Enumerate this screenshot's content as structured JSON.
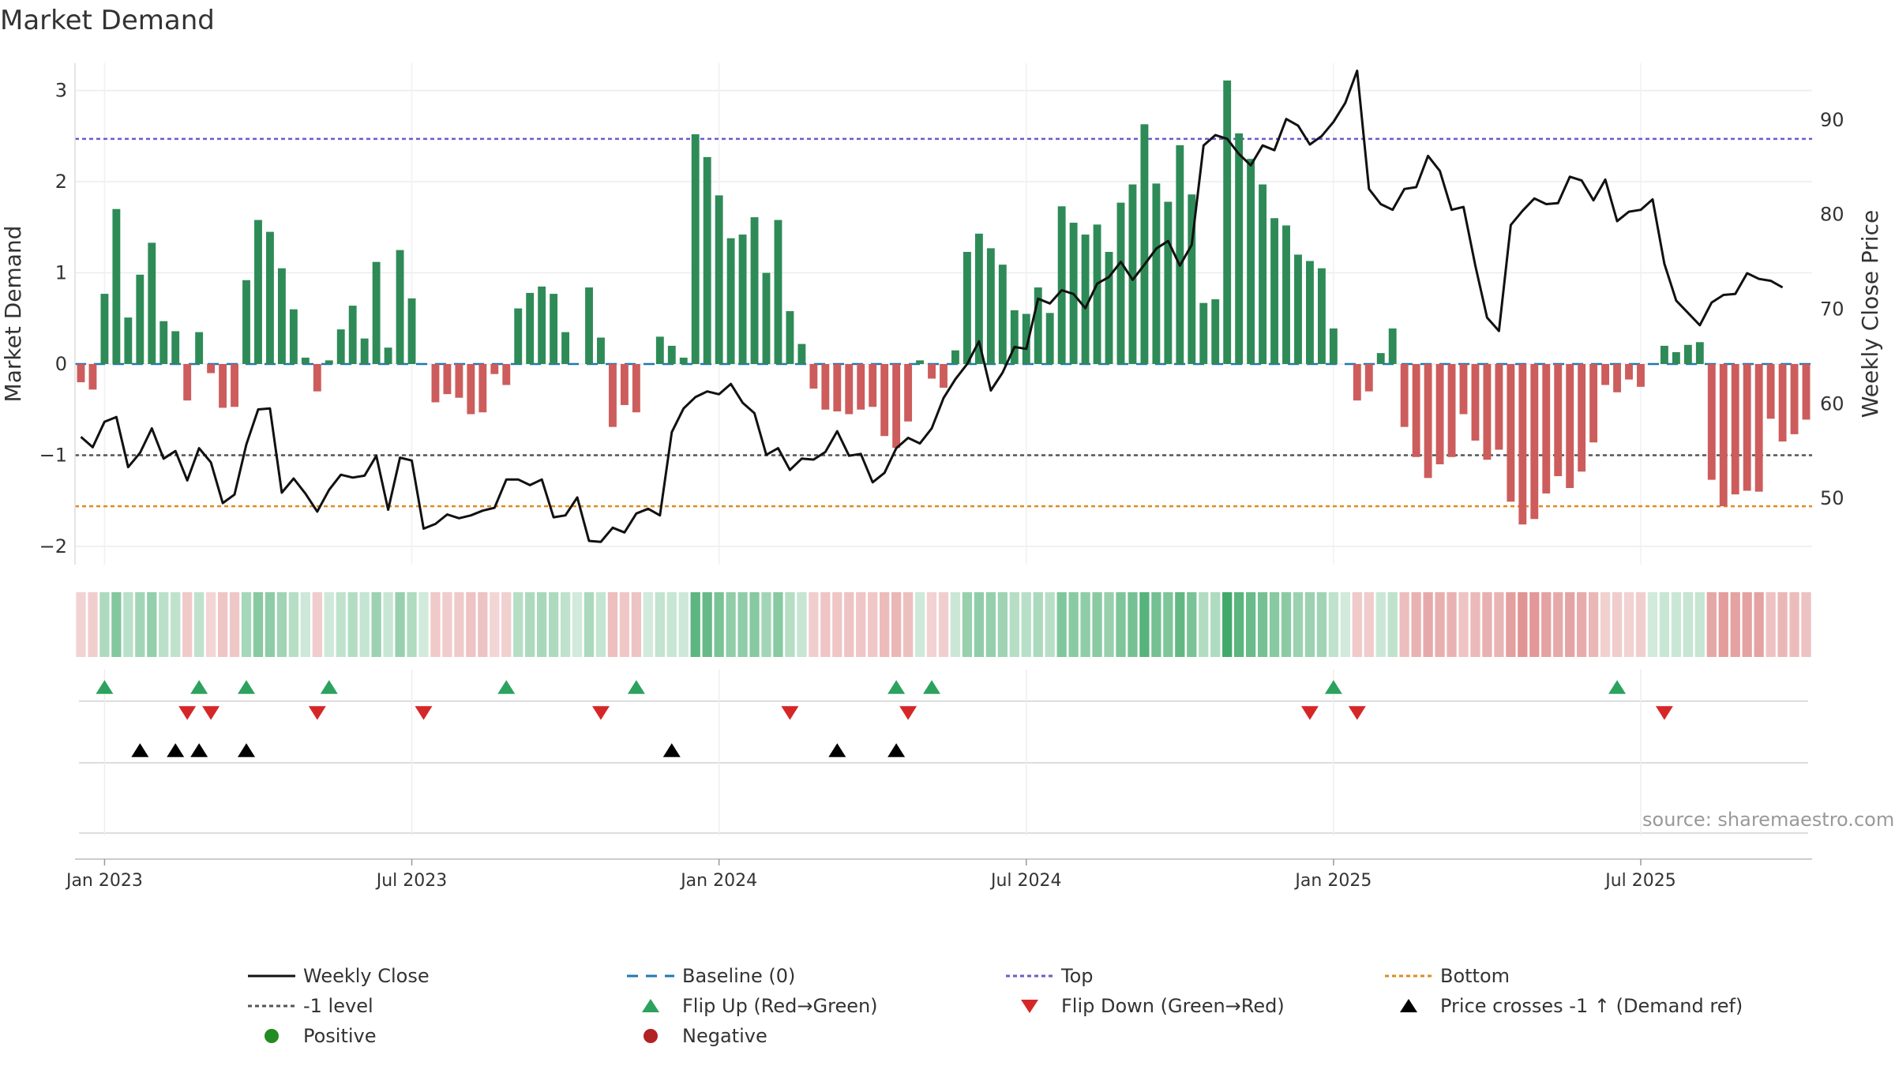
{
  "title": "Market Demand",
  "source": "source: sharemaestro.com",
  "colors": {
    "green": "#2e8b57",
    "red": "#cd5c5c",
    "price": "#111111",
    "baseline": "#1f77b4",
    "top": "#6a5acd",
    "bottom": "#e08a1e",
    "minus1": "#555555",
    "flip_up": "#2ca25f",
    "flip_down": "#d62728",
    "cross": "#000000"
  },
  "chart_data": {
    "type": "bar",
    "title": "Market Demand",
    "ylabel": "Market Demand",
    "y2label": "Weekly Close Price",
    "ylim": [
      -2.2,
      3.3
    ],
    "y2lim": [
      43,
      96
    ],
    "yticks": [
      -2,
      -1,
      0,
      1,
      2,
      3
    ],
    "y2ticks": [
      50,
      60,
      70,
      80,
      90
    ],
    "xtick_labels": [
      "Jan 2023",
      "Jul 2023",
      "Jan 2024",
      "Jul 2024",
      "Jan 2025",
      "Jul 2025"
    ],
    "xtick_weeks": [
      0,
      26,
      52,
      78,
      104,
      130
    ],
    "start_week_offset": -2,
    "levels": {
      "top": 2.47,
      "bottom": -1.56,
      "minus1": -1.0,
      "baseline": 0
    },
    "demand": [
      -0.2,
      -0.28,
      0.77,
      1.7,
      0.51,
      0.98,
      1.33,
      0.47,
      0.36,
      -0.4,
      0.35,
      -0.1,
      -0.48,
      -0.47,
      0.92,
      1.58,
      1.45,
      1.05,
      0.6,
      0.07,
      -0.3,
      0.04,
      0.38,
      0.64,
      0.28,
      1.12,
      0.18,
      1.25,
      0.72,
      0.0,
      -0.42,
      -0.33,
      -0.37,
      -0.55,
      -0.53,
      -0.11,
      -0.23,
      0.61,
      0.78,
      0.85,
      0.77,
      0.35,
      0.0,
      0.84,
      0.29,
      -0.69,
      -0.45,
      -0.53,
      0.0,
      0.3,
      0.2,
      0.07,
      2.52,
      2.27,
      1.85,
      1.38,
      1.42,
      1.61,
      1.0,
      1.58,
      0.58,
      0.22,
      -0.27,
      -0.5,
      -0.52,
      -0.55,
      -0.5,
      -0.47,
      -0.79,
      -0.92,
      -0.63,
      0.04,
      -0.16,
      -0.26,
      0.15,
      1.23,
      1.43,
      1.27,
      1.09,
      0.59,
      0.55,
      0.84,
      0.56,
      1.73,
      1.55,
      1.42,
      1.53,
      1.23,
      1.77,
      1.97,
      2.63,
      1.98,
      1.78,
      2.4,
      1.86,
      0.67,
      0.71,
      3.11,
      2.53,
      2.25,
      1.97,
      1.6,
      1.52,
      1.2,
      1.13,
      1.05,
      0.39,
      0.0,
      -0.4,
      -0.3,
      0.12,
      0.39,
      -0.69,
      -1.02,
      -1.25,
      -1.1,
      -1.02,
      -0.55,
      -0.84,
      -1.05,
      -0.94,
      -1.51,
      -1.76,
      -1.7,
      -1.42,
      -1.23,
      -1.36,
      -1.18,
      -0.86,
      -0.23,
      -0.31,
      -0.17,
      -0.25,
      0.0,
      0.2,
      0.13,
      0.21,
      0.24,
      -1.27,
      -1.56,
      -1.43,
      -1.39,
      -1.4,
      -0.6,
      -0.85,
      -0.77,
      -0.61
    ],
    "price": [
      56.5,
      55.4,
      58.1,
      58.6,
      53.3,
      54.8,
      57.4,
      54.2,
      55.0,
      51.9,
      55.3,
      53.8,
      49.5,
      50.4,
      55.7,
      59.4,
      59.5,
      50.6,
      52.1,
      50.5,
      48.6,
      50.9,
      52.5,
      52.2,
      52.4,
      54.5,
      48.8,
      54.3,
      54.0,
      46.8,
      47.3,
      48.3,
      47.9,
      48.2,
      48.7,
      49.0,
      52.0,
      52.0,
      51.4,
      52.0,
      48.0,
      48.2,
      50.1,
      45.5,
      45.4,
      46.9,
      46.4,
      48.4,
      48.9,
      48.2,
      57.0,
      59.5,
      60.7,
      61.3,
      61.0,
      62.1,
      60.1,
      59.0,
      54.6,
      55.3,
      53.0,
      54.2,
      54.1,
      54.9,
      57.1,
      54.5,
      54.7,
      51.7,
      52.7,
      55.3,
      56.4,
      55.8,
      57.4,
      60.6,
      62.6,
      64.2,
      66.6,
      61.4,
      63.3,
      66.0,
      65.8,
      71.1,
      70.6,
      72.0,
      71.6,
      70.1,
      72.7,
      73.4,
      75.0,
      73.1,
      74.7,
      76.4,
      77.2,
      74.6,
      76.8,
      87.3,
      88.4,
      88.0,
      86.4,
      85.2,
      87.3,
      86.8,
      90.1,
      89.4,
      87.4,
      88.3,
      89.8,
      91.8,
      95.2,
      82.7,
      81.1,
      80.5,
      82.7,
      82.9,
      86.2,
      84.6,
      80.5,
      80.8,
      74.6,
      69.1,
      67.7,
      78.9,
      80.4,
      81.7,
      81.1,
      81.2,
      84.0,
      83.6,
      81.5,
      83.7,
      79.3,
      80.3,
      80.5,
      81.6,
      74.8,
      70.9,
      69.6,
      68.3,
      70.7,
      71.5,
      71.6,
      73.8,
      73.2,
      73.0,
      72.3
    ],
    "flip_up_weeks": [
      0,
      8,
      12,
      19,
      34,
      45,
      67,
      70,
      104,
      128
    ],
    "flip_down_weeks": [
      7,
      9,
      18,
      27,
      42,
      58,
      68,
      102,
      106,
      132
    ],
    "cross_up_weeks": [
      3,
      6,
      8,
      12,
      48,
      62,
      67
    ]
  },
  "legend": [
    {
      "key": "weekly_close",
      "label": "Weekly Close",
      "icon": "solid-line"
    },
    {
      "key": "baseline",
      "label": "Baseline (0)",
      "icon": "dashed-line"
    },
    {
      "key": "top",
      "label": "Top",
      "icon": "dotted-line"
    },
    {
      "key": "bottom",
      "label": "Bottom",
      "icon": "dotted-line"
    },
    {
      "key": "minus1",
      "label": "-1 level",
      "icon": "dotted-line"
    },
    {
      "key": "flip_up",
      "label": "Flip Up (Red→Green)",
      "icon": "triangle-up"
    },
    {
      "key": "flip_down",
      "label": "Flip Down (Green→Red)",
      "icon": "triangle-down"
    },
    {
      "key": "cross",
      "label": "Price crosses -1 ↑ (Demand ref)",
      "icon": "triangle-up"
    },
    {
      "key": "positive",
      "label": "Positive",
      "icon": "circle"
    },
    {
      "key": "negative",
      "label": "Negative",
      "icon": "circle"
    }
  ]
}
